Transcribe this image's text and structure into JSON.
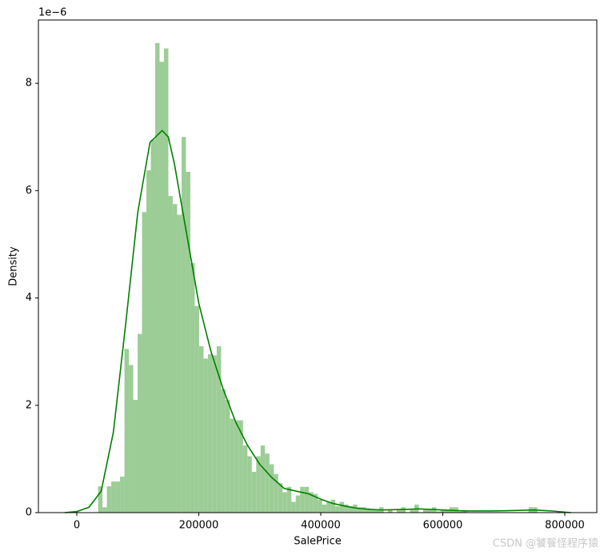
{
  "chart_data": {
    "type": "histogram",
    "xlabel": "SalePrice",
    "ylabel": "Density",
    "y_offset_label": "1e−6",
    "watermark": "CSDN @饕餮怪程序猿",
    "bins": [
      34900,
      42101,
      49302,
      56503,
      63704,
      70905,
      78106,
      85307,
      92508,
      99709,
      106910,
      114111,
      121312,
      128513,
      135714,
      142915,
      150116,
      157317,
      164518,
      171719,
      178920,
      186121,
      193322,
      200523,
      207724,
      214925,
      222126,
      229327,
      236528,
      243729,
      250930,
      258131,
      265332,
      272533,
      279734,
      286935,
      294136,
      301337,
      308538,
      315739,
      322940,
      330141,
      337342,
      344543,
      351744,
      358945,
      366146,
      373347,
      380548,
      387749,
      394950,
      402151,
      409352,
      416553,
      423754,
      430955,
      438156,
      445357,
      452558,
      459759,
      466960,
      474161,
      481362,
      488563,
      495764,
      502965,
      510166,
      517367,
      524568,
      531769,
      538970,
      546171,
      553372,
      560573,
      567774,
      574975,
      582176,
      589377,
      596578,
      603779,
      610980,
      618181,
      625382,
      632583,
      639784,
      646985,
      654186,
      661387,
      668588,
      675789,
      682990,
      690191,
      697392,
      704593,
      711794,
      718995,
      726196,
      733397,
      740598,
      747799,
      755000
    ],
    "values": [
      0.49,
      0.1,
      0.49,
      0.58,
      0.58,
      0.67,
      3.05,
      2.75,
      2.1,
      3.33,
      5.6,
      6.38,
      6.95,
      8.75,
      8.4,
      8.65,
      5.9,
      5.75,
      5.55,
      7.0,
      6.35,
      4.65,
      3.85,
      3.1,
      2.87,
      2.95,
      2.93,
      3.1,
      2.3,
      2.1,
      1.75,
      1.72,
      1.72,
      1.25,
      1.05,
      0.76,
      1.05,
      1.25,
      1.1,
      0.9,
      0.72,
      0.55,
      0.38,
      0.48,
      0.2,
      0.32,
      0.48,
      0.48,
      0.38,
      0.35,
      0.24,
      0.15,
      0.2,
      0.24,
      0.12,
      0.2,
      0.15,
      0.12,
      0.15,
      0.1,
      0.1,
      0.08,
      0.05,
      0.05,
      0.1,
      0,
      0.05,
      0,
      0.05,
      0.1,
      0,
      0.05,
      0.15,
      0,
      0.05,
      0.05,
      0.1,
      0.02,
      0.05,
      0.05,
      0.1,
      0.1,
      0.02,
      0.05,
      0,
      0,
      0,
      0,
      0,
      0,
      0,
      0,
      0,
      0,
      0,
      0,
      0,
      0,
      0.1,
      0.1
    ],
    "color": "#9ccd96",
    "kde": {
      "color": "#008000",
      "x": [
        -20000,
        0,
        20000,
        40000,
        60000,
        80000,
        100000,
        120000,
        140000,
        150000,
        160000,
        180000,
        200000,
        220000,
        240000,
        260000,
        280000,
        300000,
        320000,
        340000,
        360000,
        380000,
        400000,
        420000,
        440000,
        460000,
        480000,
        500000,
        540000,
        560000,
        600000,
        640000,
        680000,
        720000,
        750000,
        780000,
        810000
      ],
      "y": [
        0,
        0.02,
        0.1,
        0.4,
        1.5,
        3.5,
        5.6,
        6.9,
        7.12,
        7.0,
        6.5,
        5.2,
        3.9,
        3.0,
        2.3,
        1.7,
        1.25,
        0.9,
        0.65,
        0.45,
        0.4,
        0.35,
        0.25,
        0.17,
        0.12,
        0.08,
        0.06,
        0.05,
        0.06,
        0.07,
        0.05,
        0.03,
        0.03,
        0.04,
        0.05,
        0.03,
        0
      ]
    },
    "xlim": [
      -62950,
      852460
    ],
    "xticks": [
      0,
      200000,
      400000,
      600000,
      800000
    ],
    "ylim": [
      0,
      9.18
    ],
    "yticks": [
      0,
      2,
      4,
      6,
      8
    ]
  }
}
